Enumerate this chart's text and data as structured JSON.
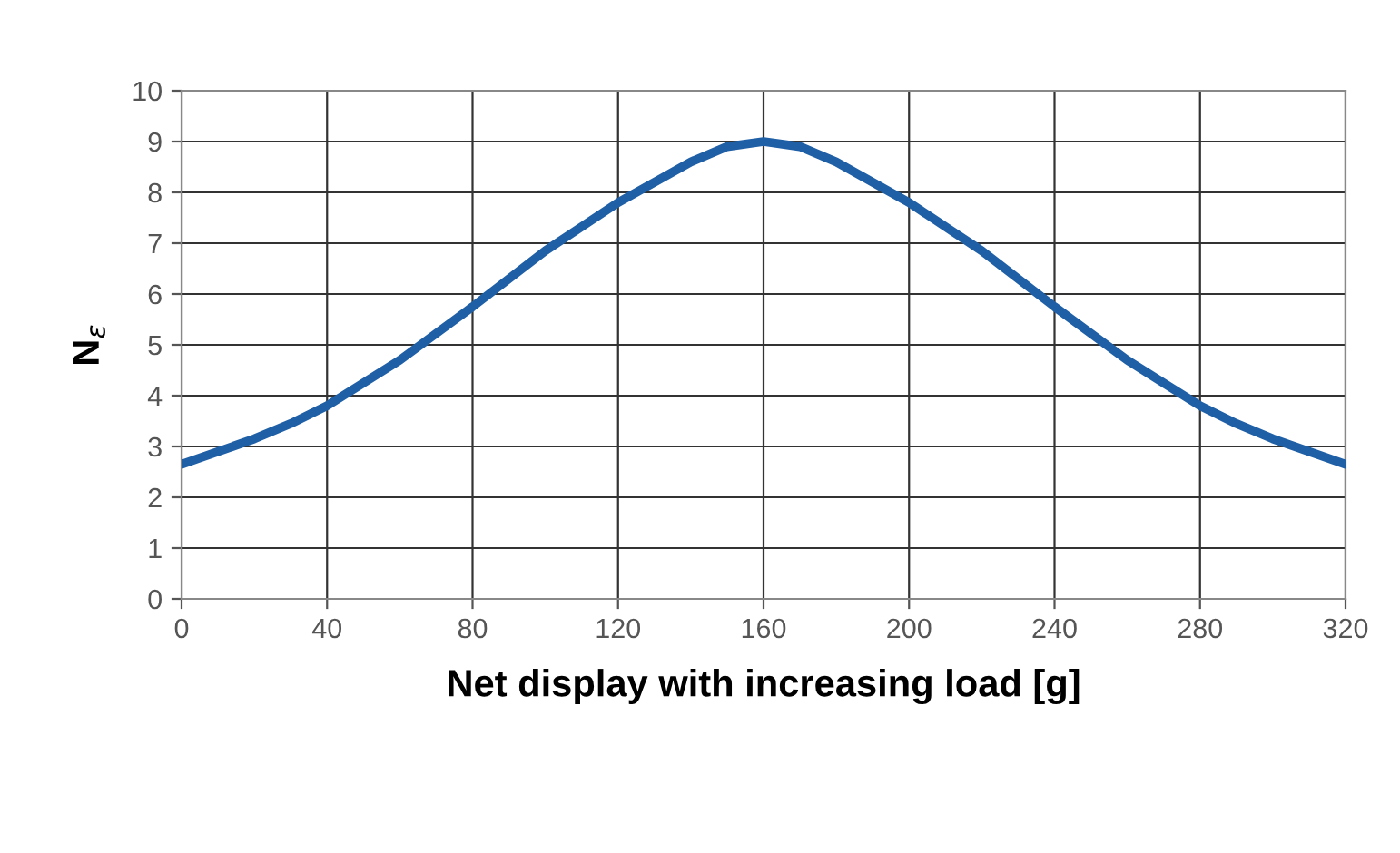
{
  "chart_data": {
    "type": "line",
    "xlabel": "Net display with increasing load [g]",
    "ylabel": "N$_{ε}$",
    "x": [
      0,
      20,
      30,
      40,
      60,
      80,
      100,
      120,
      140,
      150,
      160,
      170,
      180,
      200,
      220,
      240,
      260,
      280,
      290,
      300,
      320
    ],
    "series": [
      {
        "color": "#1f5fa6",
        "values": [
          2.65,
          3.15,
          3.45,
          3.8,
          4.7,
          5.75,
          6.85,
          7.8,
          8.6,
          8.9,
          9.0,
          8.9,
          8.6,
          7.8,
          6.85,
          5.75,
          4.7,
          3.8,
          3.45,
          3.15,
          2.65
        ]
      }
    ],
    "xlim": [
      0,
      320
    ],
    "xticks": [
      0,
      40,
      80,
      120,
      160,
      200,
      240,
      280,
      320
    ],
    "ylim": [
      0,
      10
    ],
    "yticks": [
      0,
      1,
      2,
      3,
      4,
      5,
      6,
      7,
      8,
      9,
      10
    ],
    "grid": true,
    "legend": false,
    "marker": "none",
    "line_style": "solid"
  }
}
